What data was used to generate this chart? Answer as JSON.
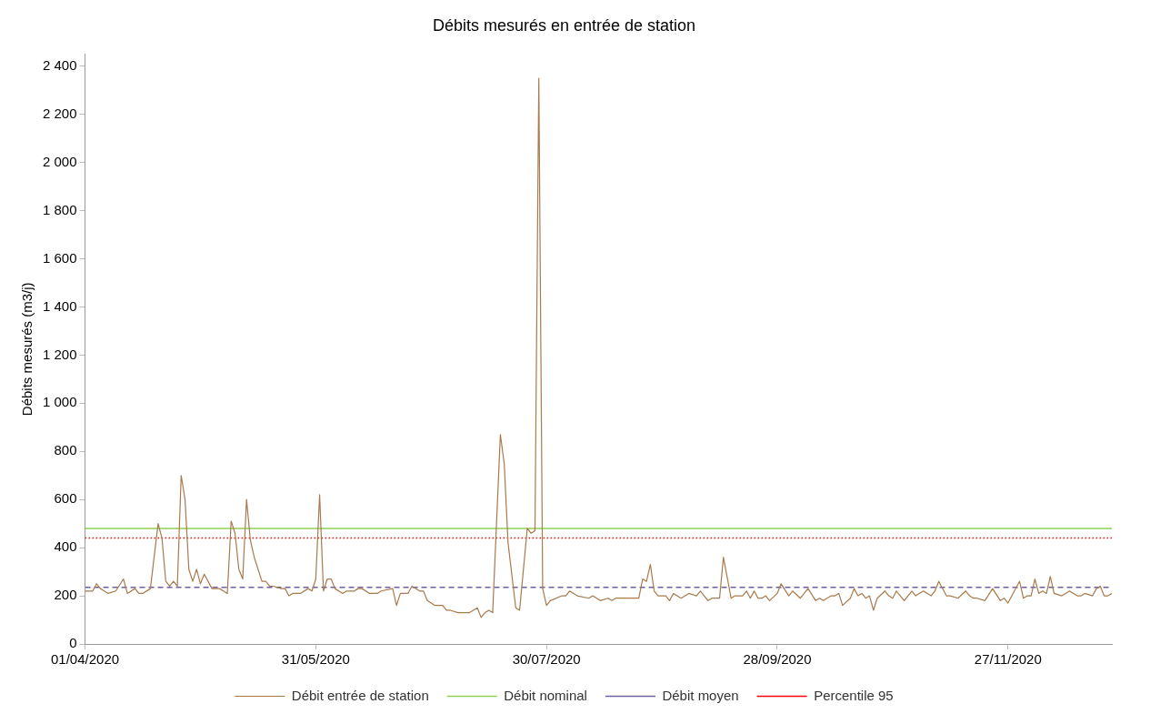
{
  "chart_data": {
    "type": "line",
    "title": "Débits mesurés en entrée de station",
    "ylabel": "Débits mesurés (m3/j)",
    "xlim": [
      "2020-04-01",
      "2020-12-24"
    ],
    "xticks": [
      {
        "value": "2020-04-01",
        "label": "01/04/2020"
      },
      {
        "value": "2020-05-31",
        "label": "31/05/2020"
      },
      {
        "value": "2020-07-30",
        "label": "30/07/2020"
      },
      {
        "value": "2020-09-28",
        "label": "28/09/2020"
      },
      {
        "value": "2020-11-27",
        "label": "27/11/2020"
      }
    ],
    "ylim": [
      0,
      2450
    ],
    "yticks": [
      0,
      200,
      400,
      600,
      800,
      {
        "value": 1000,
        "label": "1 000"
      },
      {
        "value": 1200,
        "label": "1 200"
      },
      {
        "value": 1400,
        "label": "1 400"
      },
      {
        "value": 1600,
        "label": "1 600"
      },
      {
        "value": 1800,
        "label": "1 800"
      },
      {
        "value": 2000,
        "label": "2 000"
      },
      {
        "value": 2200,
        "label": "2 200"
      },
      {
        "value": 2400,
        "label": "2 400"
      }
    ],
    "grid": false,
    "legend": "bottom",
    "marker": "none",
    "line_style": "solid",
    "series": [
      {
        "name": "Débit entrée de station",
        "color": "#a87a4c",
        "x": [
          "2020-04-01",
          "2020-04-03",
          "2020-04-04",
          "2020-04-05",
          "2020-04-06",
          "2020-04-07",
          "2020-04-09",
          "2020-04-11",
          "2020-04-12",
          "2020-04-14",
          "2020-04-15",
          "2020-04-16",
          "2020-04-18",
          "2020-04-20",
          "2020-04-21",
          "2020-04-22",
          "2020-04-23",
          "2020-04-24",
          "2020-04-25",
          "2020-04-26",
          "2020-04-27",
          "2020-04-28",
          "2020-04-29",
          "2020-04-30",
          "2020-05-01",
          "2020-05-02",
          "2020-05-04",
          "2020-05-06",
          "2020-05-07",
          "2020-05-08",
          "2020-05-09",
          "2020-05-10",
          "2020-05-11",
          "2020-05-12",
          "2020-05-13",
          "2020-05-14",
          "2020-05-15",
          "2020-05-17",
          "2020-05-18",
          "2020-05-19",
          "2020-05-20",
          "2020-05-22",
          "2020-05-23",
          "2020-05-24",
          "2020-05-25",
          "2020-05-27",
          "2020-05-29",
          "2020-05-30",
          "2020-05-31",
          "2020-06-01",
          "2020-06-02",
          "2020-06-03",
          "2020-06-04",
          "2020-06-05",
          "2020-06-07",
          "2020-06-08",
          "2020-06-10",
          "2020-06-11",
          "2020-06-12",
          "2020-06-14",
          "2020-06-15",
          "2020-06-16",
          "2020-06-17",
          "2020-06-20",
          "2020-06-21",
          "2020-06-22",
          "2020-06-24",
          "2020-06-25",
          "2020-06-27",
          "2020-06-28",
          "2020-06-29",
          "2020-07-01",
          "2020-07-03",
          "2020-07-04",
          "2020-07-05",
          "2020-07-07",
          "2020-07-08",
          "2020-07-10",
          "2020-07-12",
          "2020-07-13",
          "2020-07-14",
          "2020-07-15",
          "2020-07-16",
          "2020-07-18",
          "2020-07-19",
          "2020-07-20",
          "2020-07-22",
          "2020-07-23",
          "2020-07-25",
          "2020-07-26",
          "2020-07-27",
          "2020-07-28",
          "2020-07-29",
          "2020-07-30",
          "2020-07-31",
          "2020-08-03",
          "2020-08-04",
          "2020-08-05",
          "2020-08-07",
          "2020-08-10",
          "2020-08-11",
          "2020-08-13",
          "2020-08-15",
          "2020-08-16",
          "2020-08-17",
          "2020-08-19",
          "2020-08-21",
          "2020-08-23",
          "2020-08-24",
          "2020-08-25",
          "2020-08-26",
          "2020-08-27",
          "2020-08-28",
          "2020-08-30",
          "2020-08-31",
          "2020-09-01",
          "2020-09-03",
          "2020-09-05",
          "2020-09-07",
          "2020-09-08",
          "2020-09-10",
          "2020-09-11",
          "2020-09-12",
          "2020-09-13",
          "2020-09-14",
          "2020-09-16",
          "2020-09-17",
          "2020-09-19",
          "2020-09-20",
          "2020-09-21",
          "2020-09-22",
          "2020-09-23",
          "2020-09-24",
          "2020-09-25",
          "2020-09-26",
          "2020-09-28",
          "2020-09-29",
          "2020-10-01",
          "2020-10-02",
          "2020-10-04",
          "2020-10-06",
          "2020-10-08",
          "2020-10-09",
          "2020-10-10",
          "2020-10-12",
          "2020-10-13",
          "2020-10-14",
          "2020-10-15",
          "2020-10-17",
          "2020-10-18",
          "2020-10-19",
          "2020-10-20",
          "2020-10-21",
          "2020-10-22",
          "2020-10-23",
          "2020-10-24",
          "2020-10-26",
          "2020-10-27",
          "2020-10-28",
          "2020-10-29",
          "2020-10-31",
          "2020-11-02",
          "2020-11-03",
          "2020-11-05",
          "2020-11-07",
          "2020-11-08",
          "2020-11-09",
          "2020-11-11",
          "2020-11-12",
          "2020-11-14",
          "2020-11-16",
          "2020-11-17",
          "2020-11-18",
          "2020-11-19",
          "2020-11-21",
          "2020-11-23",
          "2020-11-25",
          "2020-11-26",
          "2020-11-27",
          "2020-11-28",
          "2020-11-30",
          "2020-12-01",
          "2020-12-02",
          "2020-12-03",
          "2020-12-04",
          "2020-12-05",
          "2020-12-06",
          "2020-12-07",
          "2020-12-08",
          "2020-12-09",
          "2020-12-11",
          "2020-12-12",
          "2020-12-13",
          "2020-12-15",
          "2020-12-16",
          "2020-12-17",
          "2020-12-19",
          "2020-12-20",
          "2020-12-21",
          "2020-12-22",
          "2020-12-23",
          "2020-12-24"
        ],
        "values": [
          220,
          220,
          250,
          230,
          220,
          210,
          220,
          270,
          210,
          230,
          210,
          210,
          230,
          500,
          440,
          260,
          240,
          260,
          240,
          700,
          600,
          310,
          260,
          310,
          250,
          290,
          230,
          230,
          220,
          210,
          510,
          460,
          310,
          270,
          600,
          430,
          360,
          260,
          260,
          240,
          240,
          230,
          230,
          200,
          210,
          210,
          230,
          220,
          270,
          620,
          220,
          270,
          270,
          230,
          210,
          220,
          220,
          230,
          230,
          210,
          210,
          210,
          220,
          230,
          160,
          210,
          210,
          240,
          220,
          220,
          180,
          160,
          160,
          140,
          140,
          130,
          130,
          130,
          150,
          110,
          130,
          140,
          130,
          870,
          750,
          420,
          150,
          140,
          480,
          460,
          470,
          2350,
          230,
          160,
          180,
          200,
          200,
          220,
          200,
          190,
          200,
          180,
          190,
          180,
          190,
          190,
          190,
          190,
          270,
          260,
          330,
          220,
          200,
          200,
          180,
          210,
          190,
          210,
          200,
          220,
          180,
          190,
          190,
          190,
          360,
          190,
          200,
          200,
          220,
          190,
          220,
          190,
          190,
          200,
          180,
          210,
          250,
          200,
          220,
          190,
          230,
          180,
          190,
          180,
          200,
          200,
          210,
          160,
          190,
          230,
          200,
          210,
          190,
          200,
          140,
          190,
          220,
          200,
          190,
          220,
          180,
          220,
          200,
          220,
          200,
          220,
          260,
          200,
          200,
          190,
          220,
          200,
          190,
          190,
          180,
          230,
          180,
          190,
          170,
          200,
          260,
          190,
          200,
          200,
          270,
          210,
          220,
          210,
          280,
          210,
          200,
          210,
          220,
          200,
          200,
          210,
          200,
          230,
          240,
          200,
          200,
          210
        ]
      }
    ],
    "ref_lines": [
      {
        "axis": "y",
        "value": 480,
        "label": "Débit nominal",
        "color": "#92d050",
        "line_style": "solid"
      },
      {
        "axis": "y",
        "value": 235,
        "label": "Débit moyen",
        "color": "#7060a0",
        "line_style": "dashed"
      },
      {
        "axis": "y",
        "value": 440,
        "label": "Percentile 95",
        "color": "#ff0000",
        "line_style": "dotted"
      }
    ]
  }
}
